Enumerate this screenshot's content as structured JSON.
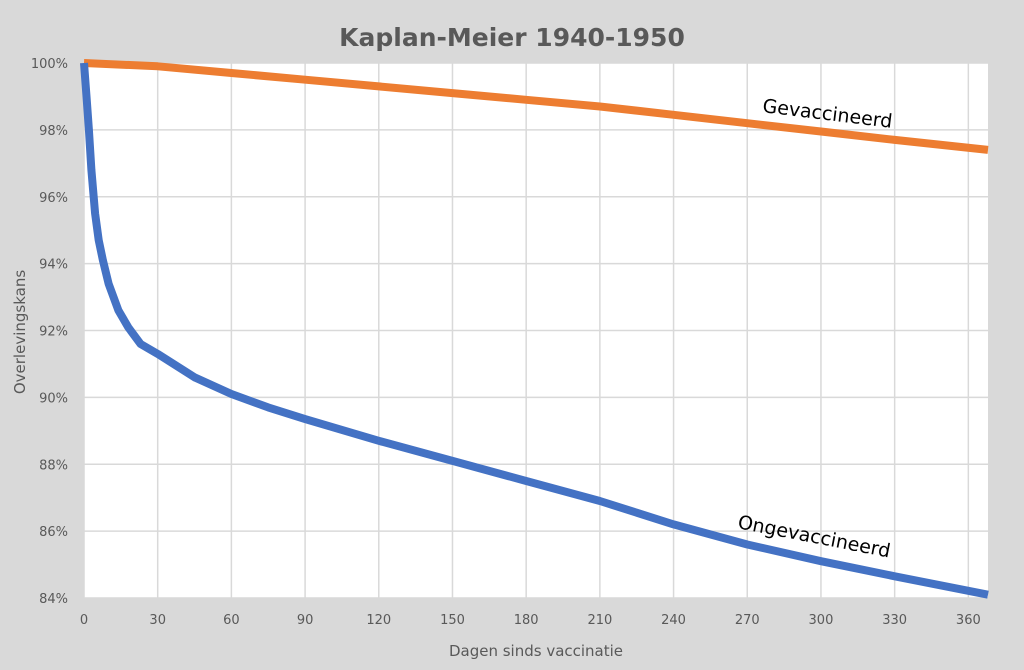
{
  "chart_data": {
    "type": "line",
    "title": "Kaplan-Meier 1940-1950",
    "xlabel": "Dagen sinds vaccinatie",
    "ylabel": "Overlevingskans",
    "xlim": [
      0,
      368
    ],
    "ylim": [
      84,
      100
    ],
    "xticks": [
      "0",
      "30",
      "60",
      "90",
      "120",
      "150",
      "180",
      "210",
      "240",
      "270",
      "300",
      "330",
      "360"
    ],
    "yticks": [
      "84%",
      "86%",
      "88%",
      "90%",
      "92%",
      "94%",
      "96%",
      "98%",
      "100%"
    ],
    "grid": true,
    "series": [
      {
        "name": "Gevaccineerd",
        "color": "#ed7d31",
        "x": [
          0,
          30,
          60,
          90,
          120,
          150,
          180,
          210,
          240,
          270,
          300,
          330,
          368
        ],
        "y": [
          100,
          99.9,
          99.7,
          99.5,
          99.3,
          99.1,
          98.9,
          98.7,
          98.45,
          98.2,
          97.95,
          97.7,
          97.4
        ]
      },
      {
        "name": "Ongevaccineerd",
        "color": "#4472c4",
        "x": [
          0,
          1,
          2,
          3,
          4.5,
          6,
          7.7,
          10,
          14,
          18,
          23,
          30,
          45,
          60,
          75,
          90,
          120,
          150,
          180,
          210,
          240,
          270,
          300,
          330,
          368
        ],
        "y": [
          100,
          99,
          98,
          96.8,
          95.5,
          94.7,
          94.1,
          93.4,
          92.6,
          92.1,
          91.6,
          91.3,
          90.6,
          90.1,
          89.7,
          89.35,
          88.7,
          88.1,
          87.5,
          86.9,
          86.2,
          85.6,
          85.1,
          84.65,
          84.1
        ]
      }
    ]
  }
}
